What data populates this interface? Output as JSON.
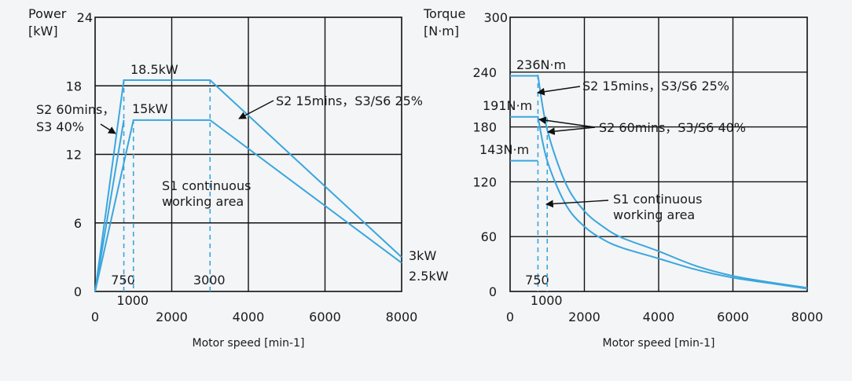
{
  "colors": {
    "curve": "#3aa6dd",
    "grid": "#111111",
    "background": "#f4f5f7"
  },
  "chart_data": [
    {
      "type": "line",
      "title": "",
      "ylabel_line1": "Power",
      "ylabel_line2": "[kW]",
      "xlabel": "Motor speed [min-1]",
      "xlim": [
        0,
        8000
      ],
      "ylim": [
        0,
        24
      ],
      "x_ticks": [
        "0",
        "2000",
        "4000",
        "6000",
        "8000"
      ],
      "x_tick_values": [
        0,
        2000,
        4000,
        6000,
        8000
      ],
      "y_ticks": [
        "0",
        "6",
        "12",
        "18",
        "24"
      ],
      "y_tick_values": [
        0,
        6,
        12,
        18,
        24
      ],
      "grid": true,
      "series": [
        {
          "x": [
            0,
            750,
            3000,
            8000
          ],
          "y": [
            0,
            18.5,
            18.5,
            3
          ]
        },
        {
          "x": [
            0,
            1000,
            3000,
            8000
          ],
          "y": [
            0,
            15,
            15,
            2.5
          ]
        },
        {
          "x": [
            0,
            750
          ],
          "y": [
            0,
            15
          ]
        }
      ],
      "markers": [
        {
          "x": 750,
          "label": "750"
        },
        {
          "x": 1000,
          "label": "1000"
        },
        {
          "x": 3000,
          "label": "3000"
        }
      ],
      "annotations": {
        "peak_185": "18.5kW",
        "peak_15": "15kW",
        "end_3": "3kW",
        "end_25": "2.5kW",
        "s2_15": "S2 15mins，S3/S6 25%",
        "s2_60_line1": "S2 60mins，",
        "s2_60_line2": "S3 40%",
        "s1_line1": "S1 continuous",
        "s1_line2": "working area"
      }
    },
    {
      "type": "line",
      "title": "",
      "ylabel_line1": "Torque",
      "ylabel_line2": "[N·m]",
      "xlabel": "Motor speed [min-1]",
      "xlim": [
        0,
        8000
      ],
      "ylim": [
        0,
        300
      ],
      "x_ticks": [
        "0",
        "2000",
        "4000",
        "6000",
        "8000"
      ],
      "x_tick_values": [
        0,
        2000,
        4000,
        6000,
        8000
      ],
      "y_ticks": [
        "0",
        "60",
        "120",
        "180",
        "240",
        "300"
      ],
      "y_tick_values": [
        0,
        60,
        120,
        180,
        240,
        300
      ],
      "grid": true,
      "series": [
        {
          "x": [
            0,
            750,
            1000,
            1500,
            2000,
            2500,
            3000,
            4000,
            5000,
            6000,
            7000,
            8000
          ],
          "y": [
            236,
            236,
            177,
            118,
            88,
            71,
            59,
            44,
            28,
            17,
            10,
            4
          ]
        },
        {
          "x": [
            0,
            750,
            1000,
            1500,
            2000,
            2500,
            3000,
            4000,
            5000,
            6000,
            7000,
            8000
          ],
          "y": [
            191,
            191,
            143,
            95,
            71,
            57,
            48,
            36,
            24,
            15,
            9,
            3
          ]
        },
        {
          "x": [
            0,
            750
          ],
          "y": [
            143,
            143
          ]
        }
      ],
      "markers": [
        {
          "x": 750,
          "label": "750"
        },
        {
          "x": 1000,
          "label": "1000"
        }
      ],
      "annotations": {
        "t236": "236N·m",
        "t191": "191N·m",
        "t143": "143N·m",
        "s2_15": "S2 15mins，S3/S6 25%",
        "s2_60": "S2 60mins，S3/S6 40%",
        "s1_line1": "S1 continuous",
        "s1_line2": "working area"
      }
    }
  ]
}
